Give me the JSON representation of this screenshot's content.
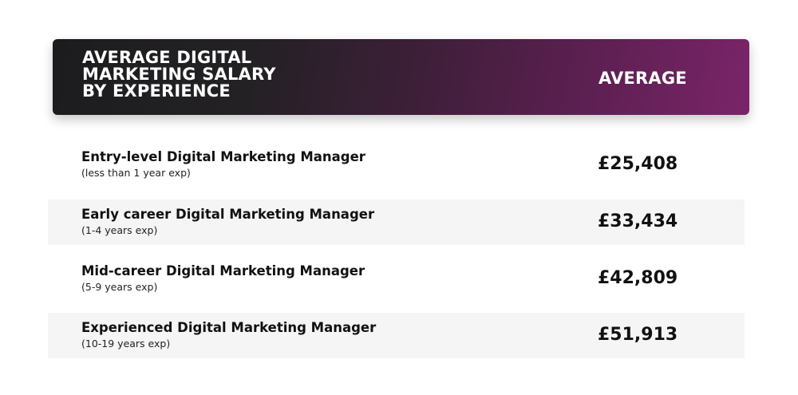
{
  "header": {
    "title": "AVERAGE DIGITAL\nMARKETING SALARY\nBY EXPERIENCE",
    "average_label": "AVERAGE"
  },
  "chart_data": {
    "type": "table",
    "title": "AVERAGE DIGITAL MARKETING SALARY BY EXPERIENCE",
    "columns": [
      "AVERAGE DIGITAL MARKETING SALARY BY EXPERIENCE",
      "AVERAGE"
    ],
    "rows": [
      {
        "label": "Entry-level Digital Marketing Manager",
        "sublabel": "(less than 1 year exp)",
        "value_text": "£25,408",
        "value": 25408
      },
      {
        "label": "Early career Digital Marketing Manager",
        "sublabel": "(1-4 years exp)",
        "value_text": "£33,434",
        "value": 33434
      },
      {
        "label": "Mid-career Digital Marketing Manager",
        "sublabel": "(5-9 years exp)",
        "value_text": "£42,809",
        "value": 42809
      },
      {
        "label": "Experienced Digital Marketing Manager",
        "sublabel": "(10-19 years exp)",
        "value_text": "£51,913",
        "value": 51913
      }
    ],
    "colors": {
      "header_start": "#1c1c1e",
      "header_end": "#7a2468",
      "row_shade": "#f5f5f5"
    }
  }
}
